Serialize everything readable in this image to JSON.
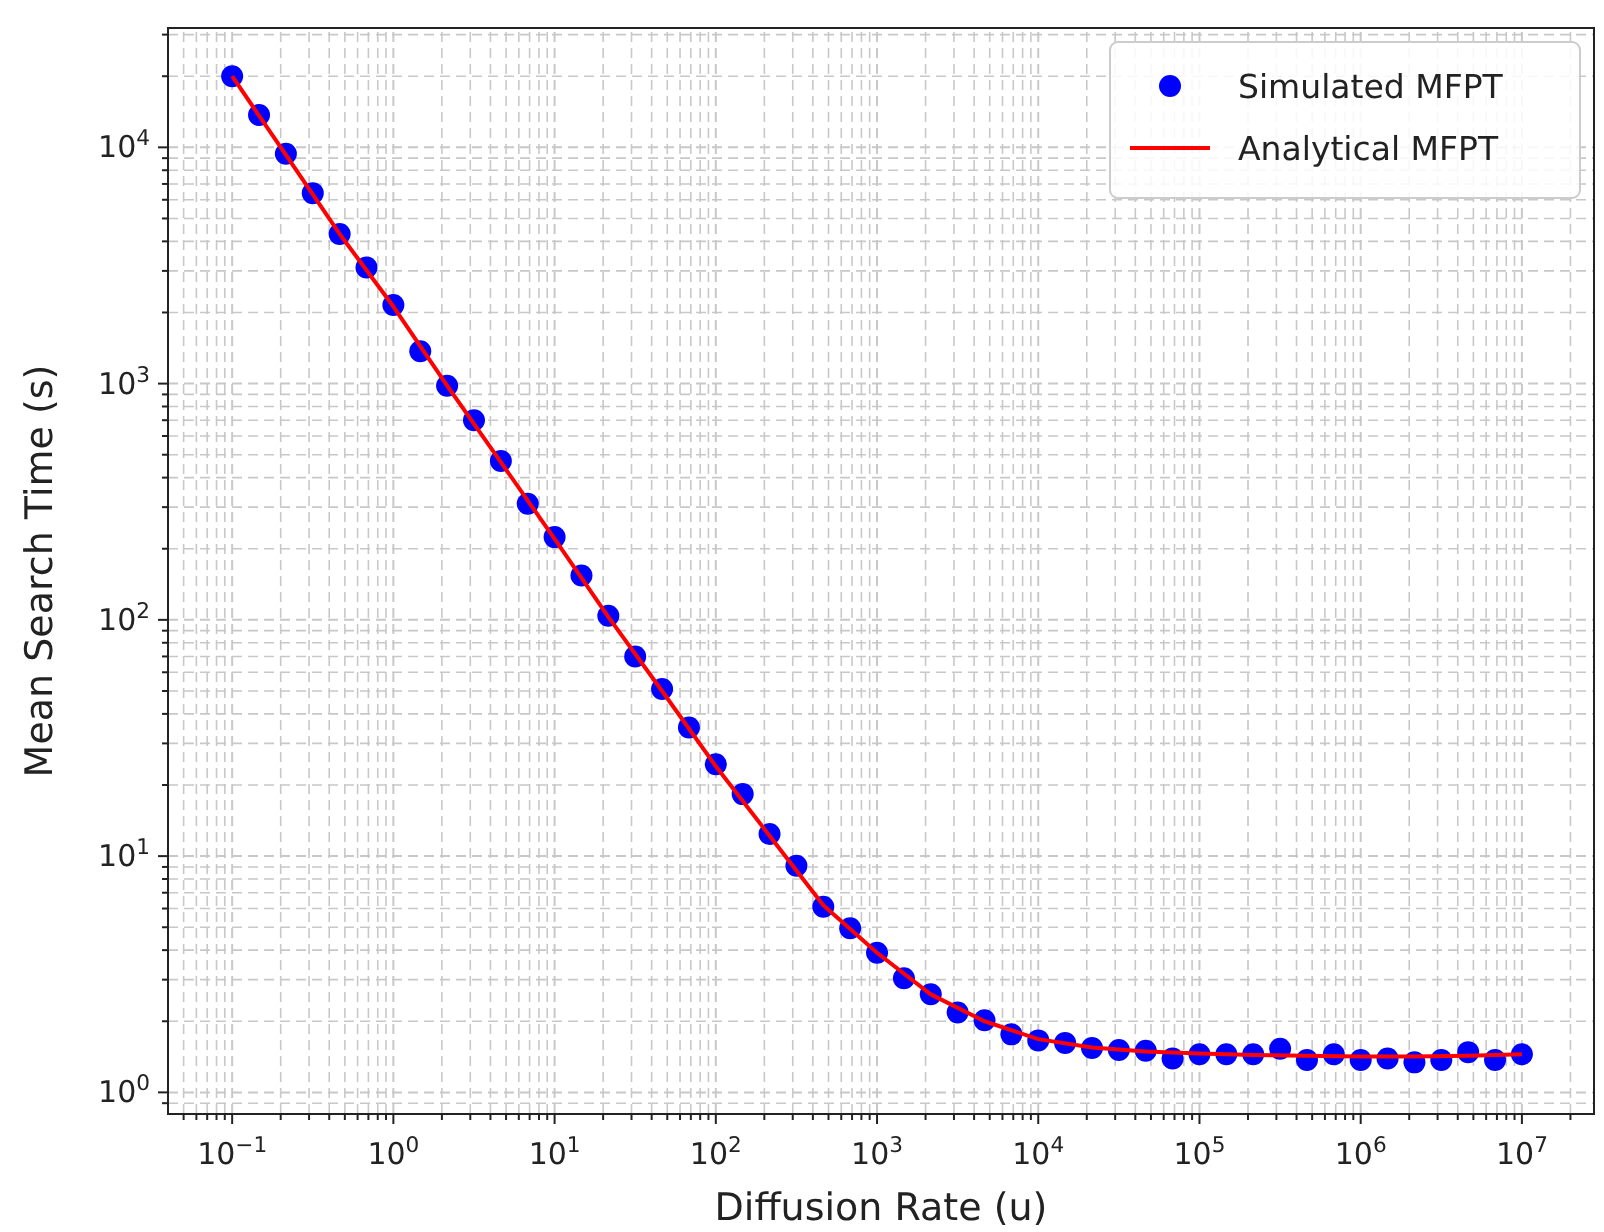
{
  "chart_data": {
    "type": "scatter",
    "xlabel": "Diffusion Rate (u)",
    "ylabel": "Mean Search Time (s)",
    "log": "xy",
    "grid": true,
    "legend": "top right",
    "xlim": [
      0.04,
      28000000
    ],
    "ylim": [
      0.81,
      32000
    ],
    "xticks": [
      {
        "value": 0.05,
        "label": null
      },
      {
        "value": 0.06,
        "label": null
      },
      {
        "value": 0.07,
        "label": null
      },
      {
        "value": 0.08,
        "label": null
      },
      {
        "value": 0.09,
        "label": null
      },
      {
        "value": 0.1,
        "label": "10$^{−1}$"
      },
      {
        "value": 0.2,
        "label": null
      },
      {
        "value": 0.3,
        "label": null
      },
      {
        "value": 0.4,
        "label": null
      },
      {
        "value": 0.5,
        "label": null
      },
      {
        "value": 0.6,
        "label": null
      },
      {
        "value": 0.7,
        "label": null
      },
      {
        "value": 0.8,
        "label": null
      },
      {
        "value": 0.9,
        "label": null
      },
      {
        "value": 1,
        "label": "10$^{0}$"
      },
      {
        "value": 2,
        "label": null
      },
      {
        "value": 3,
        "label": null
      },
      {
        "value": 4,
        "label": null
      },
      {
        "value": 5,
        "label": null
      },
      {
        "value": 6,
        "label": null
      },
      {
        "value": 7,
        "label": null
      },
      {
        "value": 8,
        "label": null
      },
      {
        "value": 9,
        "label": null
      },
      {
        "value": 10,
        "label": "10$^{1}$"
      },
      {
        "value": 20,
        "label": null
      },
      {
        "value": 30,
        "label": null
      },
      {
        "value": 40,
        "label": null
      },
      {
        "value": 50,
        "label": null
      },
      {
        "value": 60,
        "label": null
      },
      {
        "value": 70,
        "label": null
      },
      {
        "value": 80,
        "label": null
      },
      {
        "value": 90,
        "label": null
      },
      {
        "value": 100,
        "label": "10$^{2}$"
      },
      {
        "value": 200,
        "label": null
      },
      {
        "value": 300,
        "label": null
      },
      {
        "value": 400,
        "label": null
      },
      {
        "value": 500,
        "label": null
      },
      {
        "value": 600,
        "label": null
      },
      {
        "value": 700,
        "label": null
      },
      {
        "value": 800,
        "label": null
      },
      {
        "value": 900,
        "label": null
      },
      {
        "value": 1000,
        "label": "10$^{3}$"
      },
      {
        "value": 2000,
        "label": null
      },
      {
        "value": 3000,
        "label": null
      },
      {
        "value": 4000,
        "label": null
      },
      {
        "value": 5000,
        "label": null
      },
      {
        "value": 6000,
        "label": null
      },
      {
        "value": 7000,
        "label": null
      },
      {
        "value": 8000,
        "label": null
      },
      {
        "value": 9000,
        "label": null
      },
      {
        "value": 10000,
        "label": "10$^{4}$"
      },
      {
        "value": 20000,
        "label": null
      },
      {
        "value": 30000,
        "label": null
      },
      {
        "value": 40000,
        "label": null
      },
      {
        "value": 50000,
        "label": null
      },
      {
        "value": 60000,
        "label": null
      },
      {
        "value": 70000,
        "label": null
      },
      {
        "value": 80000,
        "label": null
      },
      {
        "value": 90000,
        "label": null
      },
      {
        "value": 100000,
        "label": "10$^{5}$"
      },
      {
        "value": 200000,
        "label": null
      },
      {
        "value": 300000,
        "label": null
      },
      {
        "value": 400000,
        "label": null
      },
      {
        "value": 500000,
        "label": null
      },
      {
        "value": 600000,
        "label": null
      },
      {
        "value": 700000,
        "label": null
      },
      {
        "value": 800000,
        "label": null
      },
      {
        "value": 900000,
        "label": null
      },
      {
        "value": 1000000,
        "label": "10$^{6}$"
      },
      {
        "value": 2000000,
        "label": null
      },
      {
        "value": 3000000,
        "label": null
      },
      {
        "value": 4000000,
        "label": null
      },
      {
        "value": 5000000,
        "label": null
      },
      {
        "value": 6000000,
        "label": null
      },
      {
        "value": 7000000,
        "label": null
      },
      {
        "value": 8000000,
        "label": null
      },
      {
        "value": 9000000,
        "label": null
      },
      {
        "value": 10000000,
        "label": "10$^{7}$"
      },
      {
        "value": 20000000,
        "label": null
      }
    ],
    "yticks": [
      {
        "value": 0.9,
        "label": null
      },
      {
        "value": 1,
        "label": "10$^{0}$"
      },
      {
        "value": 2,
        "label": null
      },
      {
        "value": 3,
        "label": null
      },
      {
        "value": 4,
        "label": null
      },
      {
        "value": 5,
        "label": null
      },
      {
        "value": 6,
        "label": null
      },
      {
        "value": 7,
        "label": null
      },
      {
        "value": 8,
        "label": null
      },
      {
        "value": 9,
        "label": null
      },
      {
        "value": 10,
        "label": "10$^{1}$"
      },
      {
        "value": 20,
        "label": null
      },
      {
        "value": 30,
        "label": null
      },
      {
        "value": 40,
        "label": null
      },
      {
        "value": 50,
        "label": null
      },
      {
        "value": 60,
        "label": null
      },
      {
        "value": 70,
        "label": null
      },
      {
        "value": 80,
        "label": null
      },
      {
        "value": 90,
        "label": null
      },
      {
        "value": 100,
        "label": "10$^{2}$"
      },
      {
        "value": 200,
        "label": null
      },
      {
        "value": 300,
        "label": null
      },
      {
        "value": 400,
        "label": null
      },
      {
        "value": 500,
        "label": null
      },
      {
        "value": 600,
        "label": null
      },
      {
        "value": 700,
        "label": null
      },
      {
        "value": 800,
        "label": null
      },
      {
        "value": 900,
        "label": null
      },
      {
        "value": 1000,
        "label": "10$^{3}$"
      },
      {
        "value": 2000,
        "label": null
      },
      {
        "value": 3000,
        "label": null
      },
      {
        "value": 4000,
        "label": null
      },
      {
        "value": 5000,
        "label": null
      },
      {
        "value": 6000,
        "label": null
      },
      {
        "value": 7000,
        "label": null
      },
      {
        "value": 8000,
        "label": null
      },
      {
        "value": 9000,
        "label": null
      },
      {
        "value": 10000,
        "label": "10$^{4}$"
      },
      {
        "value": 20000,
        "label": null
      },
      {
        "value": 30000,
        "label": null
      }
    ],
    "series": [
      {
        "name": "Simulated MFPT",
        "marker": "circle",
        "color": "#0000ff",
        "x": [
          0.1,
          0.1468,
          0.2154,
          0.3162,
          0.4642,
          0.6813,
          1,
          1.468,
          2.154,
          3.162,
          4.642,
          6.813,
          10,
          14.68,
          21.54,
          31.62,
          46.42,
          68.13,
          100,
          146.8,
          215.4,
          316.2,
          464.2,
          681.3,
          1000,
          1468,
          2154,
          3162,
          4642,
          6813,
          10000,
          14678,
          21544,
          31623,
          46416,
          68129,
          100000,
          146780,
          215440,
          316230,
          464160,
          681290,
          1000000,
          1467800,
          2154400,
          3162300,
          4641600,
          6812900,
          10000000
        ],
        "values": [
          20000,
          13700,
          9400,
          6400,
          4300,
          3100,
          2150,
          1370,
          980,
          700,
          470,
          310,
          224,
          154,
          104,
          70,
          51,
          35,
          24.5,
          18.3,
          12.4,
          9.1,
          6.1,
          4.95,
          3.9,
          3.04,
          2.6,
          2.18,
          2.02,
          1.76,
          1.66,
          1.62,
          1.54,
          1.51,
          1.5,
          1.39,
          1.45,
          1.45,
          1.45,
          1.53,
          1.37,
          1.45,
          1.37,
          1.39,
          1.34,
          1.37,
          1.48,
          1.37,
          1.45
        ]
      },
      {
        "name": "Analytical MFPT",
        "type": "line",
        "marker": "none",
        "line_style": "solid",
        "color": "#ff0000",
        "x": [
          0.1,
          0.2154,
          0.4642,
          1,
          2.154,
          4.642,
          10,
          21.54,
          46.42,
          100,
          215.4,
          464.2,
          1000,
          2154,
          4642,
          10000,
          21544,
          46416,
          100000,
          215440,
          464160,
          1000000,
          2154400,
          4641600,
          10000000
        ],
        "values": [
          20000,
          9300,
          4300,
          2120,
          980,
          465,
          220,
          103,
          50,
          24,
          12.2,
          6.2,
          3.9,
          2.6,
          2.0,
          1.68,
          1.55,
          1.49,
          1.46,
          1.44,
          1.43,
          1.42,
          1.42,
          1.43,
          1.45
        ]
      }
    ]
  }
}
